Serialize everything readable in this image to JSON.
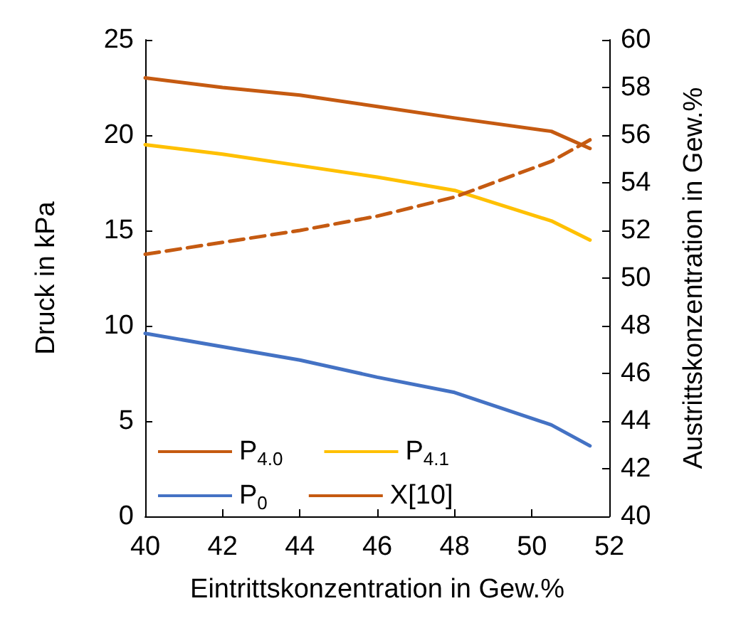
{
  "chart_data": {
    "type": "line",
    "xlabel": "Eintrittskonzentration in Gew.%",
    "ylabel": "Druck in kPa",
    "y2label": "Austrittskonzentration in Gew.%",
    "x": [
      40,
      42,
      44,
      46,
      48,
      50.5,
      51.5
    ],
    "series": [
      {
        "name": "P$_{4.0}$",
        "color": "#c55a11",
        "values": [
          23.0,
          22.5,
          22.1,
          21.5,
          20.9,
          20.2,
          19.3
        ]
      },
      {
        "name": "P$_{4.1}$",
        "color": "#ffc000",
        "values": [
          19.5,
          19.0,
          18.4,
          17.8,
          17.1,
          15.5,
          14.5
        ]
      },
      {
        "name": "P$_{0}$",
        "color": "#4472c4",
        "values": [
          9.6,
          8.9,
          8.2,
          7.3,
          6.5,
          4.8,
          3.7
        ]
      },
      {
        "name": "X[10]",
        "color": "#c55a11",
        "line_style": "dashed",
        "axis": "y2",
        "values": [
          51.0,
          51.5,
          52.0,
          52.6,
          53.4,
          54.9,
          55.8
        ]
      }
    ],
    "xlim": [
      40,
      52
    ],
    "xticks": [
      40,
      42,
      44,
      46,
      48,
      50,
      52
    ],
    "ylim": [
      0,
      25
    ],
    "yticks": [
      0,
      5,
      10,
      15,
      20,
      25
    ],
    "y2lim": [
      40,
      60
    ],
    "y2ticks": [
      40,
      42,
      44,
      46,
      48,
      50,
      52,
      54,
      56,
      58,
      60
    ],
    "grid": false,
    "legend": "bottom left",
    "marker": "none",
    "line_style": "solid"
  }
}
